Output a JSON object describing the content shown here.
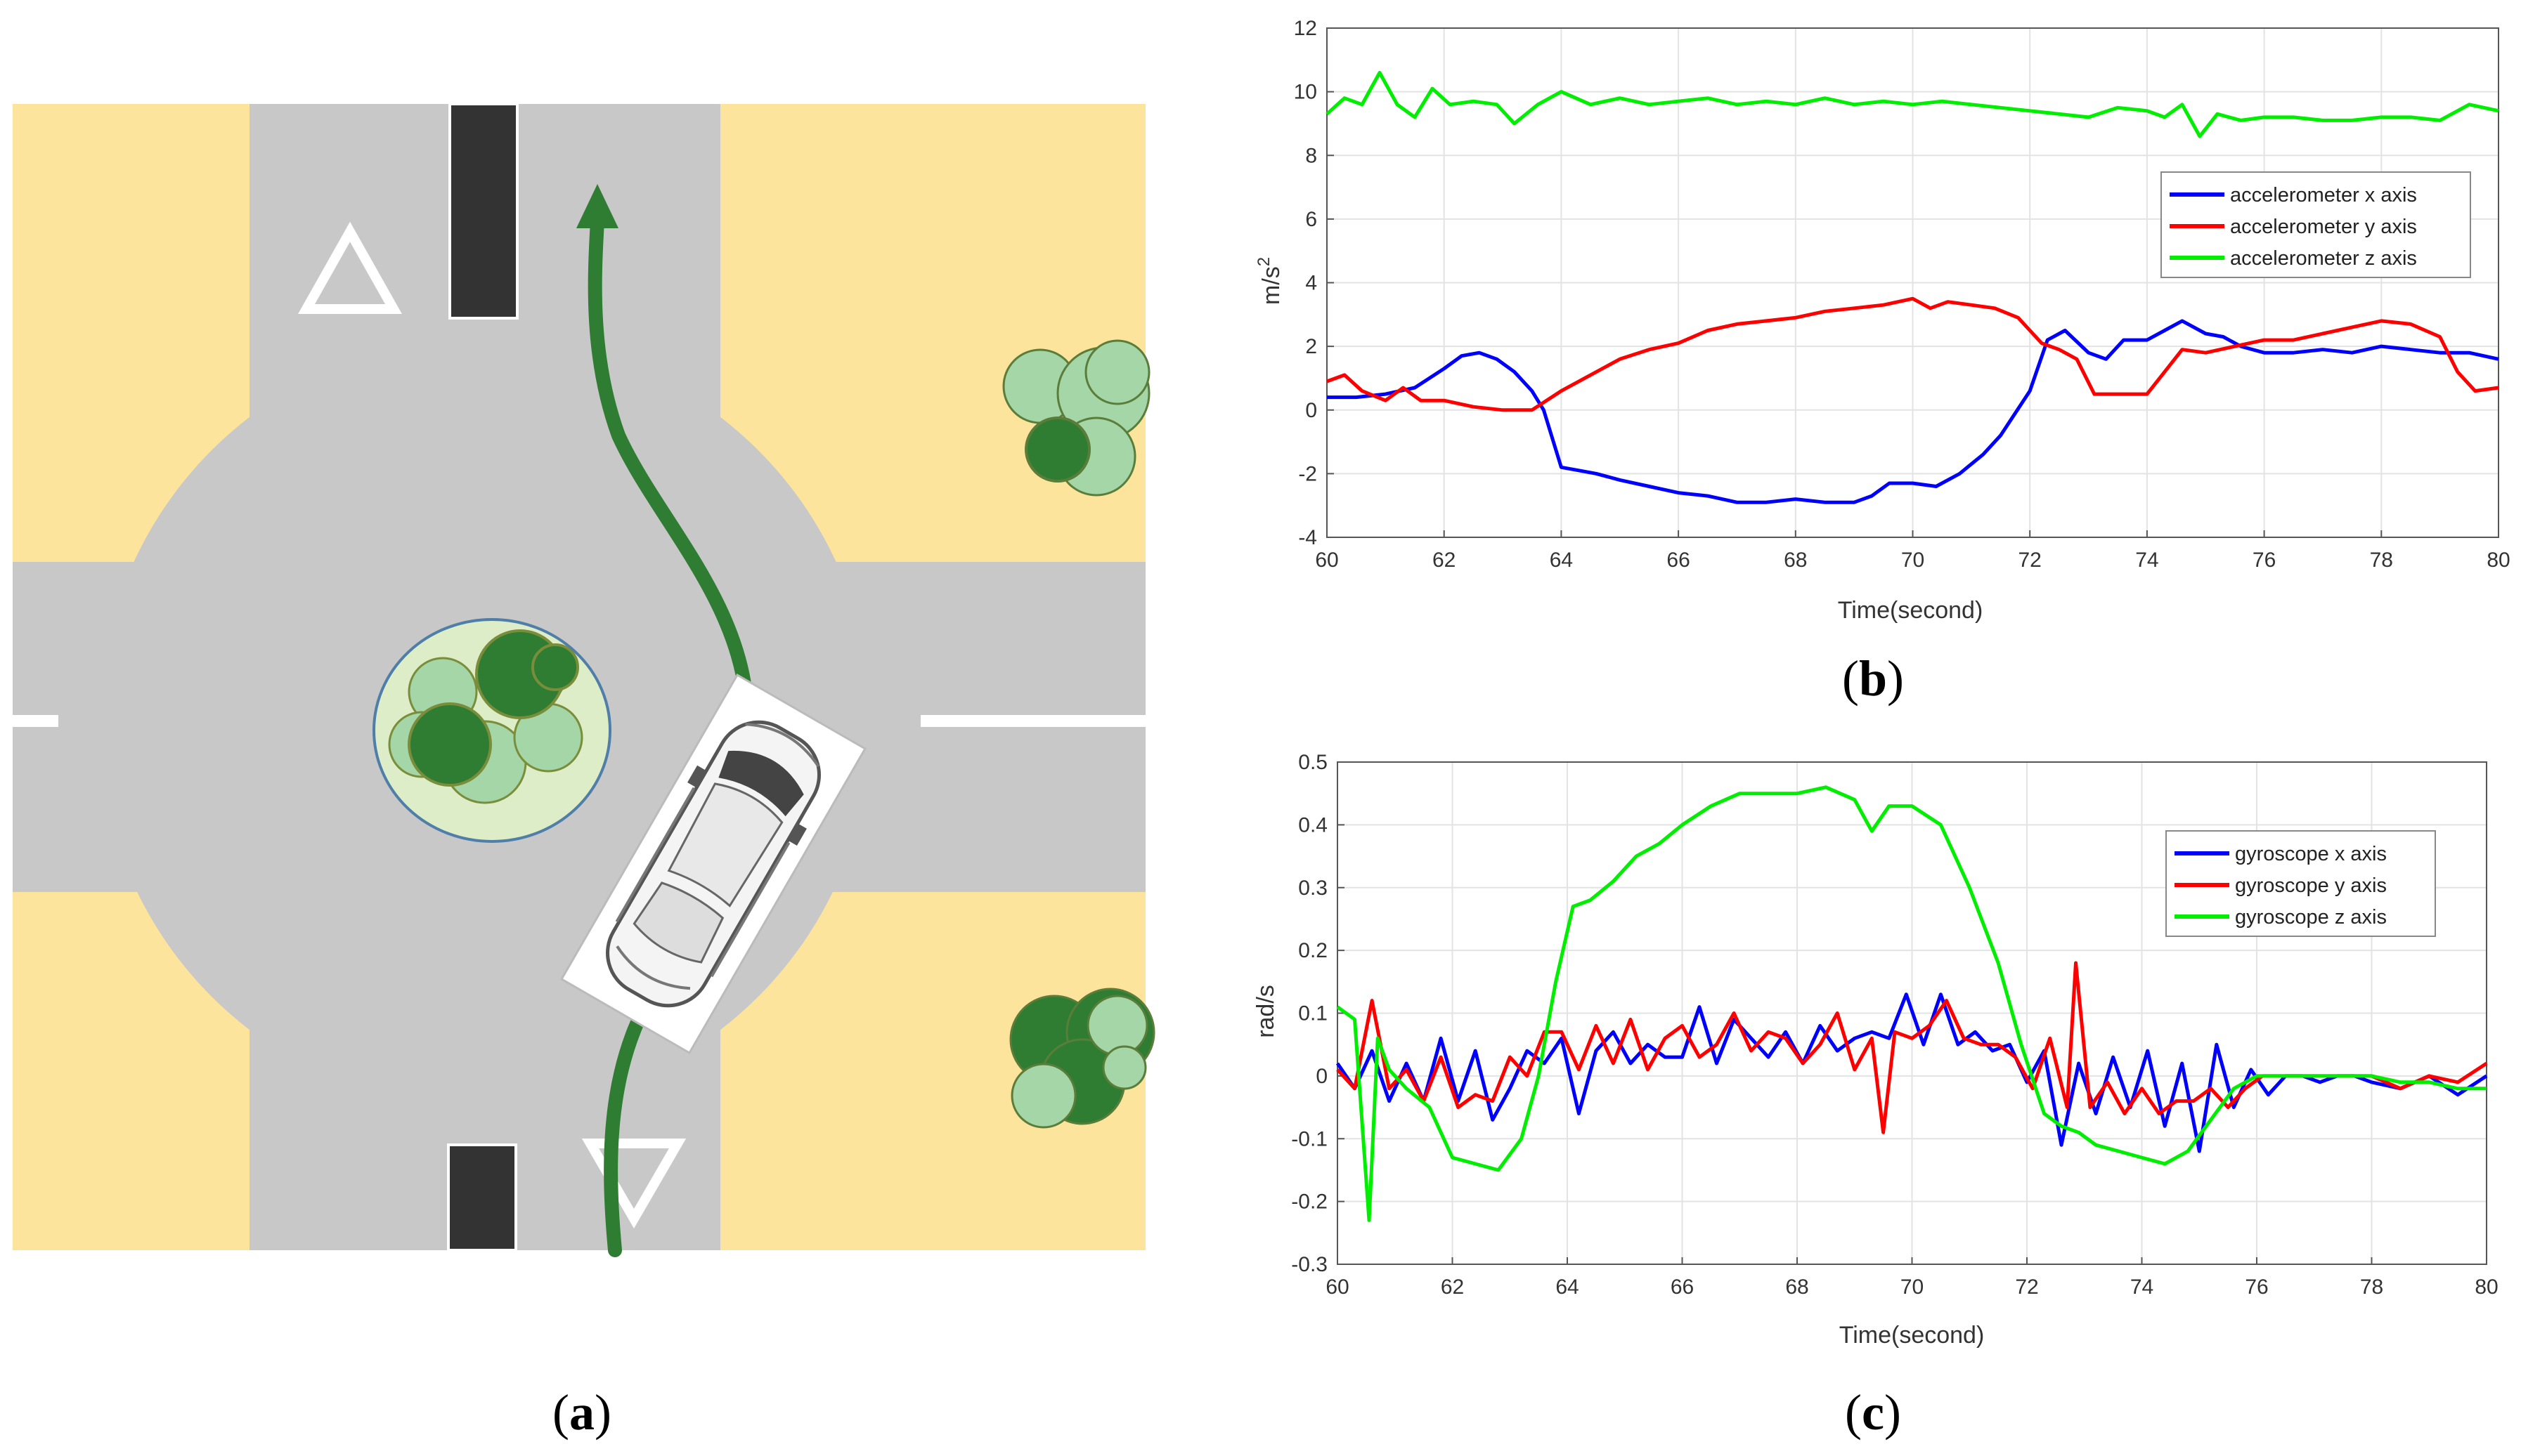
{
  "captions": {
    "a": {
      "open": "(",
      "letter": "a",
      "close": ")"
    },
    "b": {
      "open": "(",
      "letter": "b",
      "close": ")"
    },
    "c": {
      "open": "(",
      "letter": "c",
      "close": ")"
    }
  },
  "scene": {
    "description_icons": [
      "roundabout",
      "car-icon",
      "tree-icon",
      "yield-sign-icon",
      "path-arrow-icon"
    ],
    "colors": {
      "sand": "#fde49c",
      "road": "#c8c8c8",
      "path": "#2e7d32",
      "tree_light": "#a5d6a7",
      "tree_dark": "#2e7d32",
      "island": "#dcedc8"
    }
  },
  "chart_data": [
    {
      "type": "line",
      "panel": "b",
      "title": "",
      "xlabel": "Time(second)",
      "ylabel": "m/s",
      "ylabel_sup": "2",
      "xlim": [
        60,
        80
      ],
      "ylim": [
        -4,
        12
      ],
      "xticks": [
        60,
        62,
        64,
        66,
        68,
        70,
        72,
        74,
        76,
        78,
        80
      ],
      "yticks": [
        -4,
        -2,
        0,
        2,
        4,
        6,
        8,
        10,
        12
      ],
      "grid": true,
      "legend": "right",
      "series": [
        {
          "name": "accelerometer x axis",
          "color": "#0000ff",
          "x": [
            60,
            60.5,
            61,
            61.5,
            62,
            62.3,
            62.6,
            62.9,
            63.2,
            63.5,
            63.7,
            64,
            64.3,
            64.6,
            65,
            65.5,
            66,
            66.5,
            67,
            67.5,
            68,
            68.5,
            69,
            69.3,
            69.6,
            70,
            70.4,
            70.8,
            71.2,
            71.5,
            72,
            72.3,
            72.6,
            73,
            73.3,
            73.6,
            74,
            74.3,
            74.6,
            75,
            75.3,
            75.6,
            76,
            76.5,
            77,
            77.5,
            78,
            78.5,
            79,
            79.5,
            80
          ],
          "y": [
            0.4,
            0.4,
            0.5,
            0.7,
            1.3,
            1.7,
            1.8,
            1.6,
            1.2,
            0.6,
            0,
            -1.8,
            -1.9,
            -2,
            -2.2,
            -2.4,
            -2.6,
            -2.7,
            -2.9,
            -2.9,
            -2.8,
            -2.9,
            -2.9,
            -2.7,
            -2.3,
            -2.3,
            -2.4,
            -2,
            -1.4,
            -0.8,
            0.6,
            2.2,
            2.5,
            1.8,
            1.6,
            2.2,
            2.2,
            2.5,
            2.8,
            2.4,
            2.3,
            2,
            1.8,
            1.8,
            1.9,
            1.8,
            2.0,
            1.9,
            1.8,
            1.8,
            1.6
          ]
        },
        {
          "name": "accelerometer y axis",
          "color": "#ff0000",
          "x": [
            60,
            60.3,
            60.6,
            61,
            61.3,
            61.6,
            62,
            62.5,
            63,
            63.5,
            64,
            64.5,
            65,
            65.5,
            66,
            66.5,
            67,
            67.5,
            68,
            68.5,
            69,
            69.5,
            70,
            70.3,
            70.6,
            71,
            71.4,
            71.8,
            72.2,
            72.5,
            72.8,
            73.1,
            73.5,
            74,
            74.3,
            74.6,
            75,
            75.5,
            76,
            76.5,
            77,
            77.5,
            78,
            78.5,
            79,
            79.3,
            79.6,
            80
          ],
          "y": [
            0.9,
            1.1,
            0.6,
            0.3,
            0.7,
            0.3,
            0.3,
            0.1,
            0,
            0,
            0.6,
            1.1,
            1.6,
            1.9,
            2.1,
            2.5,
            2.7,
            2.8,
            2.9,
            3.1,
            3.2,
            3.3,
            3.5,
            3.2,
            3.4,
            3.3,
            3.2,
            2.9,
            2.1,
            1.9,
            1.6,
            0.5,
            0.5,
            0.5,
            1.2,
            1.9,
            1.8,
            2.0,
            2.2,
            2.2,
            2.4,
            2.6,
            2.8,
            2.7,
            2.3,
            1.2,
            0.6,
            0.7
          ]
        },
        {
          "name": "accelerometer z axis",
          "color": "#00ee00",
          "x": [
            60,
            60.3,
            60.6,
            60.9,
            61.2,
            61.5,
            61.8,
            62.1,
            62.5,
            62.9,
            63.2,
            63.6,
            64,
            64.5,
            65,
            65.5,
            66,
            66.5,
            67,
            67.5,
            68,
            68.5,
            69,
            69.5,
            70,
            70.5,
            71,
            71.5,
            72,
            72.5,
            73,
            73.5,
            74,
            74.3,
            74.6,
            74.9,
            75.2,
            75.6,
            76,
            76.5,
            77,
            77.5,
            78,
            78.5,
            79,
            79.5,
            80
          ],
          "y": [
            9.3,
            9.8,
            9.6,
            10.6,
            9.6,
            9.2,
            10.1,
            9.6,
            9.7,
            9.6,
            9.0,
            9.6,
            10.0,
            9.6,
            9.8,
            9.6,
            9.7,
            9.8,
            9.6,
            9.7,
            9.6,
            9.8,
            9.6,
            9.7,
            9.6,
            9.7,
            9.6,
            9.5,
            9.4,
            9.3,
            9.2,
            9.5,
            9.4,
            9.2,
            9.6,
            8.6,
            9.3,
            9.1,
            9.2,
            9.2,
            9.1,
            9.1,
            9.2,
            9.2,
            9.1,
            9.6,
            9.4
          ]
        }
      ]
    },
    {
      "type": "line",
      "panel": "c",
      "title": "",
      "xlabel": "Time(second)",
      "ylabel": "rad/s",
      "xlim": [
        60,
        80
      ],
      "ylim": [
        -0.3,
        0.5
      ],
      "xticks": [
        60,
        62,
        64,
        66,
        68,
        70,
        72,
        74,
        76,
        78,
        80
      ],
      "yticks": [
        -0.3,
        -0.2,
        -0.1,
        0,
        0.1,
        0.2,
        0.3,
        0.4,
        0.5
      ],
      "grid": true,
      "legend": "right",
      "series": [
        {
          "name": "gyroscope x axis",
          "color": "#0000ff",
          "x": [
            60,
            60.3,
            60.6,
            60.9,
            61.2,
            61.5,
            61.8,
            62.1,
            62.4,
            62.7,
            63,
            63.3,
            63.6,
            63.9,
            64.2,
            64.5,
            64.8,
            65.1,
            65.4,
            65.7,
            66,
            66.3,
            66.6,
            66.9,
            67.2,
            67.5,
            67.8,
            68.1,
            68.4,
            68.7,
            69,
            69.3,
            69.6,
            69.9,
            70.2,
            70.5,
            70.8,
            71.1,
            71.4,
            71.7,
            72,
            72.3,
            72.6,
            72.9,
            73.2,
            73.5,
            73.8,
            74.1,
            74.4,
            74.7,
            75,
            75.3,
            75.6,
            75.9,
            76.2,
            76.5,
            76.8,
            77.1,
            77.4,
            77.7,
            78,
            78.5,
            79,
            79.5,
            80
          ],
          "y": [
            0.02,
            -0.02,
            0.04,
            -0.04,
            0.02,
            -0.04,
            0.06,
            -0.04,
            0.04,
            -0.07,
            -0.02,
            0.04,
            0.02,
            0.06,
            -0.06,
            0.04,
            0.07,
            0.02,
            0.05,
            0.03,
            0.03,
            0.11,
            0.02,
            0.09,
            0.06,
            0.03,
            0.07,
            0.02,
            0.08,
            0.04,
            0.06,
            0.07,
            0.06,
            0.13,
            0.05,
            0.13,
            0.05,
            0.07,
            0.04,
            0.05,
            -0.01,
            0.04,
            -0.11,
            0.02,
            -0.06,
            0.03,
            -0.05,
            0.04,
            -0.08,
            0.02,
            -0.12,
            0.05,
            -0.05,
            0.01,
            -0.03,
            0,
            0,
            -0.01,
            0,
            0,
            -0.01,
            -0.02,
            0,
            -0.03,
            0
          ]
        },
        {
          "name": "gyroscope y axis",
          "color": "#ff0000",
          "x": [
            60,
            60.3,
            60.6,
            60.9,
            61.2,
            61.5,
            61.8,
            62.1,
            62.4,
            62.7,
            63,
            63.3,
            63.6,
            63.9,
            64.2,
            64.5,
            64.8,
            65.1,
            65.4,
            65.7,
            66,
            66.3,
            66.6,
            66.9,
            67.2,
            67.5,
            67.8,
            68.1,
            68.4,
            68.7,
            69,
            69.3,
            69.5,
            69.7,
            70,
            70.3,
            70.6,
            70.9,
            71.2,
            71.5,
            71.8,
            72.1,
            72.4,
            72.7,
            72.85,
            73.1,
            73.4,
            73.7,
            74,
            74.3,
            74.6,
            74.9,
            75.2,
            75.5,
            75.8,
            76.1,
            76.5,
            77,
            77.5,
            78,
            78.5,
            79,
            79.5,
            80
          ],
          "y": [
            0.01,
            -0.02,
            0.12,
            -0.02,
            0.01,
            -0.04,
            0.03,
            -0.05,
            -0.03,
            -0.04,
            0.03,
            0.0,
            0.07,
            0.07,
            0.01,
            0.08,
            0.02,
            0.09,
            0.01,
            0.06,
            0.08,
            0.03,
            0.05,
            0.1,
            0.04,
            0.07,
            0.06,
            0.02,
            0.05,
            0.1,
            0.01,
            0.06,
            -0.09,
            0.07,
            0.06,
            0.08,
            0.12,
            0.06,
            0.05,
            0.05,
            0.03,
            -0.02,
            0.06,
            -0.05,
            0.18,
            -0.05,
            -0.01,
            -0.06,
            -0.02,
            -0.06,
            -0.04,
            -0.04,
            -0.02,
            -0.05,
            -0.02,
            0,
            0,
            0,
            0,
            0,
            -0.02,
            0,
            -0.01,
            0.02
          ]
        },
        {
          "name": "gyroscope z axis",
          "color": "#00ee00",
          "x": [
            60,
            60.3,
            60.55,
            60.7,
            60.9,
            61.2,
            61.6,
            62,
            62.4,
            62.8,
            63.2,
            63.5,
            63.8,
            64.1,
            64.4,
            64.8,
            65.2,
            65.6,
            66,
            66.5,
            67,
            67.5,
            68,
            68.5,
            69,
            69.3,
            69.6,
            70,
            70.5,
            71,
            71.5,
            71.9,
            72.3,
            72.6,
            72.9,
            73.2,
            73.6,
            74,
            74.4,
            74.8,
            75.2,
            75.6,
            76,
            76.5,
            77,
            77.5,
            78,
            78.5,
            79,
            79.5,
            80
          ],
          "y": [
            0.11,
            0.09,
            -0.23,
            0.06,
            0.01,
            -0.02,
            -0.05,
            -0.13,
            -0.14,
            -0.15,
            -0.1,
            0.0,
            0.15,
            0.27,
            0.28,
            0.31,
            0.35,
            0.37,
            0.4,
            0.43,
            0.45,
            0.45,
            0.45,
            0.46,
            0.44,
            0.39,
            0.43,
            0.43,
            0.4,
            0.3,
            0.18,
            0.05,
            -0.06,
            -0.08,
            -0.09,
            -0.11,
            -0.12,
            -0.13,
            -0.14,
            -0.12,
            -0.07,
            -0.02,
            0,
            0,
            0.0,
            0,
            0,
            -0.01,
            -0.01,
            -0.02,
            -0.02
          ]
        }
      ]
    }
  ]
}
